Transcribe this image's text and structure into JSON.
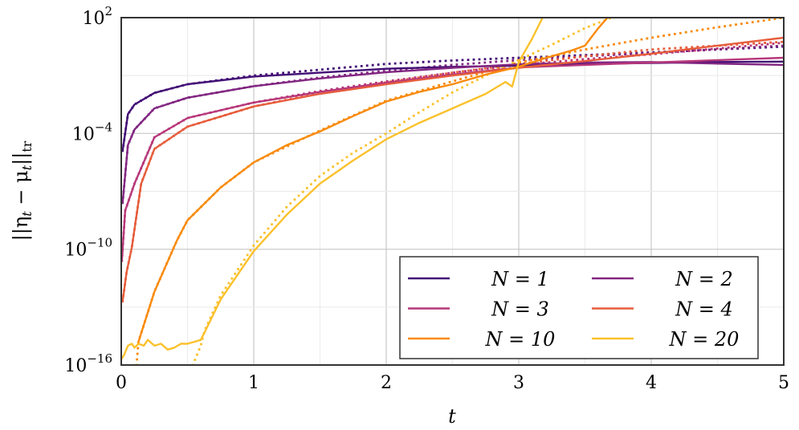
{
  "chart_data": {
    "type": "line",
    "xlabel": "t",
    "ylabel": "||η_t − μ_t||_tr",
    "ylabel_sub": {
      "base": "||η",
      "s1": "t",
      "mid": " − μ",
      "s2": "t",
      "end": "||",
      "s3": "tr"
    },
    "x_scale": "linear",
    "y_scale": "log",
    "xlim": [
      0,
      5
    ],
    "ylim_log10": [
      -16,
      2
    ],
    "x_ticks": [
      "0",
      "1",
      "2",
      "3",
      "4",
      "5"
    ],
    "y_ticks": [
      {
        "base": "10",
        "exp": "2"
      },
      {
        "base": "10",
        "exp": "−4"
      },
      {
        "base": "10",
        "exp": "−10"
      },
      {
        "base": "10",
        "exp": "−16"
      }
    ],
    "grid": true,
    "legend_position": "bottom-right",
    "legend": [
      "N = 1",
      "N = 2",
      "N = 3",
      "N = 4",
      "N = 10",
      "N = 20"
    ],
    "series": [
      {
        "name": "N = 1",
        "color": "#420f75",
        "style": "solid",
        "t": [
          0.01,
          0.05,
          0.1,
          0.25,
          0.5,
          1,
          1.5,
          2,
          2.5,
          3,
          3.5,
          4,
          4.5,
          5
        ],
        "log10_y": [
          -4.9,
          -3.0,
          -2.5,
          -1.9,
          -1.45,
          -1.05,
          -0.85,
          -0.65,
          -0.55,
          -0.48,
          -0.4,
          -0.35,
          -0.3,
          -0.28
        ]
      },
      {
        "color": "#420f75",
        "style": "dotted",
        "t": [
          0.01,
          0.05,
          0.1,
          0.25,
          0.5,
          1,
          1.5,
          2,
          2.5,
          3,
          3.5,
          4,
          4.5,
          5
        ],
        "log10_y": [
          -4.9,
          -3.0,
          -2.5,
          -1.9,
          -1.45,
          -1.0,
          -0.7,
          -0.4,
          -0.22,
          -0.08,
          0.06,
          0.2,
          0.35,
          0.5
        ]
      },
      {
        "name": "N = 2",
        "color": "#822681",
        "style": "solid",
        "t": [
          0.01,
          0.05,
          0.1,
          0.25,
          0.5,
          1,
          1.5,
          2,
          2.5,
          3,
          3.5,
          4,
          4.5,
          5
        ],
        "log10_y": [
          -7.6,
          -4.6,
          -3.8,
          -2.7,
          -2.15,
          -1.55,
          -1.15,
          -0.83,
          -0.6,
          -0.42,
          -0.33,
          -0.3,
          -0.38,
          -0.45
        ]
      },
      {
        "color": "#822681",
        "style": "dotted",
        "t": [
          0.01,
          0.05,
          0.1,
          0.25,
          0.5,
          1,
          1.5,
          2,
          2.5,
          3,
          3.5,
          4,
          4.5,
          5
        ],
        "log10_y": [
          -7.6,
          -4.6,
          -3.8,
          -2.7,
          -2.15,
          -1.55,
          -1.1,
          -0.75,
          -0.45,
          -0.2,
          0.0,
          0.17,
          0.36,
          0.55
        ]
      },
      {
        "name": "N = 3",
        "color": "#b73779",
        "style": "solid",
        "t": [
          0.005,
          0.03,
          0.1,
          0.25,
          0.5,
          1,
          1.5,
          2,
          2.5,
          3,
          3.5,
          4,
          4.5,
          5
        ],
        "log10_y": [
          -10.6,
          -8.0,
          -6.6,
          -4.2,
          -3.2,
          -2.4,
          -1.85,
          -1.37,
          -0.95,
          -0.58,
          -0.45,
          -0.33,
          -0.2,
          -0.08
        ]
      },
      {
        "color": "#b73779",
        "style": "dotted",
        "t": [
          0.005,
          0.03,
          0.1,
          0.25,
          0.5,
          1,
          1.5,
          2,
          2.5,
          3,
          3.5,
          4,
          4.5,
          5
        ],
        "log10_y": [
          -10.6,
          -8.0,
          -6.6,
          -4.2,
          -3.2,
          -2.4,
          -1.8,
          -1.3,
          -0.85,
          -0.45,
          -0.15,
          0.1,
          0.4,
          0.7
        ]
      },
      {
        "name": "N = 4",
        "color": "#e65d3c",
        "style": "solid",
        "t": [
          0.01,
          0.04,
          0.08,
          0.15,
          0.25,
          0.5,
          1,
          1.5,
          2,
          2.5,
          3,
          3.5,
          4,
          4.5,
          5
        ],
        "log10_y": [
          -12.7,
          -11.2,
          -9.9,
          -6.6,
          -4.8,
          -3.65,
          -2.6,
          -1.95,
          -1.45,
          -1.0,
          -0.6,
          -0.25,
          0.13,
          0.55,
          0.96
        ]
      },
      {
        "color": "#e65d3c",
        "style": "dotted",
        "t": [
          0.01,
          0.04,
          0.08,
          0.15,
          0.25,
          0.5,
          1,
          1.5,
          2,
          2.5,
          3,
          3.5,
          4,
          4.5,
          5
        ],
        "log10_y": [
          -12.7,
          -11.2,
          -9.9,
          -6.6,
          -4.8,
          -3.65,
          -2.6,
          -1.9,
          -1.35,
          -0.85,
          -0.4,
          0.0,
          0.35,
          0.55,
          0.75
        ]
      },
      {
        "name": "N = 10",
        "color": "#f98a0b",
        "style": "solid",
        "t": [
          0.13,
          0.25,
          0.42,
          0.5,
          0.75,
          1,
          1.25,
          1.5,
          1.75,
          2,
          2.25,
          2.5,
          2.75,
          3,
          3.2,
          3.4,
          3.5,
          3.6,
          3.67
        ],
        "log10_y": [
          -14.8,
          -12.2,
          -9.55,
          -8.5,
          -6.8,
          -5.5,
          -4.6,
          -3.9,
          -3.1,
          -2.35,
          -1.85,
          -1.45,
          -0.95,
          -0.54,
          -0.1,
          0.3,
          0.55,
          1.45,
          2.0
        ]
      },
      {
        "color": "#f98a0b",
        "style": "dotted",
        "t": [
          0.115,
          0.13,
          0.25,
          0.42,
          0.5,
          0.75,
          1,
          1.5,
          2,
          2.5,
          3,
          3.5,
          4,
          4.5,
          5
        ],
        "log10_y": [
          -16,
          -14.8,
          -12.2,
          -9.55,
          -8.5,
          -6.8,
          -5.5,
          -3.85,
          -2.3,
          -1.3,
          -0.33,
          0.35,
          0.96,
          1.5,
          2.0
        ]
      },
      {
        "name": "N = 20",
        "color": "#fbc12c",
        "style": "solid",
        "t": [
          0.0,
          0.02,
          0.05,
          0.08,
          0.1,
          0.13,
          0.17,
          0.2,
          0.25,
          0.3,
          0.35,
          0.4,
          0.45,
          0.5,
          0.55,
          0.6,
          0.63,
          0.75,
          1,
          1.25,
          1.5,
          1.75,
          2,
          2.25,
          2.5,
          2.75,
          2.9,
          2.95,
          3.0,
          3.1,
          3.18
        ],
        "log10_y": [
          -15.7,
          -15.5,
          -15.0,
          -14.9,
          -15.1,
          -14.9,
          -15.0,
          -14.7,
          -15.0,
          -14.9,
          -15.2,
          -15.1,
          -14.9,
          -14.9,
          -14.8,
          -14.7,
          -14.3,
          -12.6,
          -10.1,
          -8.2,
          -6.6,
          -5.4,
          -4.3,
          -3.45,
          -2.7,
          -1.95,
          -1.33,
          -1.57,
          -0.3,
          0.9,
          2.0
        ]
      },
      {
        "color": "#fbc12c",
        "style": "dotted",
        "t": [
          0.54,
          0.6,
          0.63,
          0.75,
          1,
          1.25,
          1.5,
          1.75,
          2,
          2.25,
          2.5,
          2.75,
          3,
          3.25,
          3.5,
          3.7
        ],
        "log10_y": [
          -16,
          -15,
          -14.2,
          -12.4,
          -9.8,
          -7.8,
          -6.2,
          -5.0,
          -4.0,
          -2.9,
          -1.87,
          -1.0,
          -0.2,
          0.6,
          1.46,
          2.0
        ]
      }
    ]
  }
}
